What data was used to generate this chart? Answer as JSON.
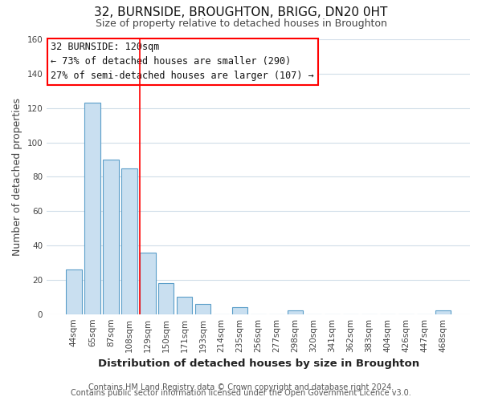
{
  "title": "32, BURNSIDE, BROUGHTON, BRIGG, DN20 0HT",
  "subtitle": "Size of property relative to detached houses in Broughton",
  "xlabel": "Distribution of detached houses by size in Broughton",
  "ylabel": "Number of detached properties",
  "bar_labels": [
    "44sqm",
    "65sqm",
    "87sqm",
    "108sqm",
    "129sqm",
    "150sqm",
    "171sqm",
    "193sqm",
    "214sqm",
    "235sqm",
    "256sqm",
    "277sqm",
    "298sqm",
    "320sqm",
    "341sqm",
    "362sqm",
    "383sqm",
    "404sqm",
    "426sqm",
    "447sqm",
    "468sqm"
  ],
  "bar_values": [
    26,
    123,
    90,
    85,
    36,
    18,
    10,
    6,
    0,
    4,
    0,
    0,
    2,
    0,
    0,
    0,
    0,
    0,
    0,
    0,
    2
  ],
  "bar_color": "#c9dff0",
  "bar_edge_color": "#5b9ec9",
  "ylim": [
    0,
    160
  ],
  "yticks": [
    0,
    20,
    40,
    60,
    80,
    100,
    120,
    140,
    160
  ],
  "annotation_title": "32 BURNSIDE: 120sqm",
  "annotation_line1": "← 73% of detached houses are smaller (290)",
  "annotation_line2": "27% of semi-detached houses are larger (107) →",
  "vline_x_index": 3.57,
  "footer_line1": "Contains HM Land Registry data © Crown copyright and database right 2024.",
  "footer_line2": "Contains public sector information licensed under the Open Government Licence v3.0.",
  "grid_color": "#d0dde8",
  "background_color": "#ffffff",
  "title_fontsize": 11,
  "subtitle_fontsize": 9,
  "tick_fontsize": 7.5,
  "ylabel_fontsize": 9,
  "xlabel_fontsize": 9.5,
  "footer_fontsize": 7,
  "annotation_fontsize": 8.5
}
